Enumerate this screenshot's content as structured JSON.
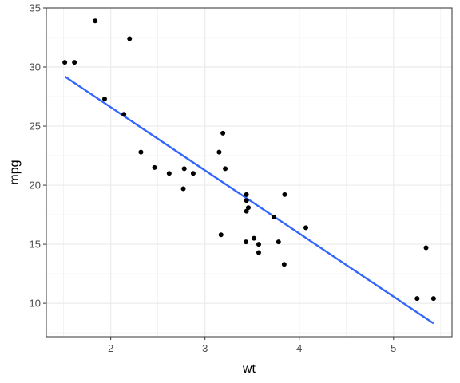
{
  "chart_data": {
    "type": "scatter",
    "title": "",
    "xlabel": "wt",
    "ylabel": "mpg",
    "xlim": [
      1.317,
      5.62
    ],
    "ylim": [
      7.17,
      35.0
    ],
    "x_ticks": [
      2,
      3,
      4,
      5
    ],
    "x_tick_labels": [
      "2",
      "3",
      "4",
      "5"
    ],
    "y_ticks": [
      10,
      15,
      20,
      25,
      30,
      35
    ],
    "y_tick_labels": [
      "10",
      "15",
      "20",
      "25",
      "30",
      "35"
    ],
    "grid": true,
    "points": [
      {
        "x": 2.62,
        "y": 21.0
      },
      {
        "x": 2.875,
        "y": 21.0
      },
      {
        "x": 2.32,
        "y": 22.8
      },
      {
        "x": 3.215,
        "y": 21.4
      },
      {
        "x": 3.44,
        "y": 18.7
      },
      {
        "x": 3.46,
        "y": 18.1
      },
      {
        "x": 3.57,
        "y": 14.3
      },
      {
        "x": 3.19,
        "y": 24.4
      },
      {
        "x": 3.15,
        "y": 22.8
      },
      {
        "x": 3.44,
        "y": 19.2
      },
      {
        "x": 3.44,
        "y": 17.8
      },
      {
        "x": 4.07,
        "y": 16.4
      },
      {
        "x": 3.73,
        "y": 17.3
      },
      {
        "x": 3.78,
        "y": 15.2
      },
      {
        "x": 5.25,
        "y": 10.4
      },
      {
        "x": 5.424,
        "y": 10.4
      },
      {
        "x": 5.345,
        "y": 14.7
      },
      {
        "x": 2.2,
        "y": 32.4
      },
      {
        "x": 1.615,
        "y": 30.4
      },
      {
        "x": 1.835,
        "y": 33.9
      },
      {
        "x": 2.465,
        "y": 21.5
      },
      {
        "x": 3.52,
        "y": 15.5
      },
      {
        "x": 3.435,
        "y": 15.2
      },
      {
        "x": 3.84,
        "y": 13.3
      },
      {
        "x": 3.845,
        "y": 19.2
      },
      {
        "x": 1.935,
        "y": 27.3
      },
      {
        "x": 2.14,
        "y": 26.0
      },
      {
        "x": 1.513,
        "y": 30.4
      },
      {
        "x": 3.17,
        "y": 15.8
      },
      {
        "x": 2.77,
        "y": 19.7
      },
      {
        "x": 3.57,
        "y": 15.0
      },
      {
        "x": 2.78,
        "y": 21.4
      }
    ],
    "fit_line": {
      "method": "lm",
      "color": "#3366ff",
      "x": [
        1.513,
        5.424
      ],
      "y": [
        29.2,
        8.3
      ]
    },
    "colors": {
      "points": "#000000",
      "panel_background": "#ffffff",
      "grid": "#ebebeb",
      "panel_border": "#333333"
    }
  }
}
